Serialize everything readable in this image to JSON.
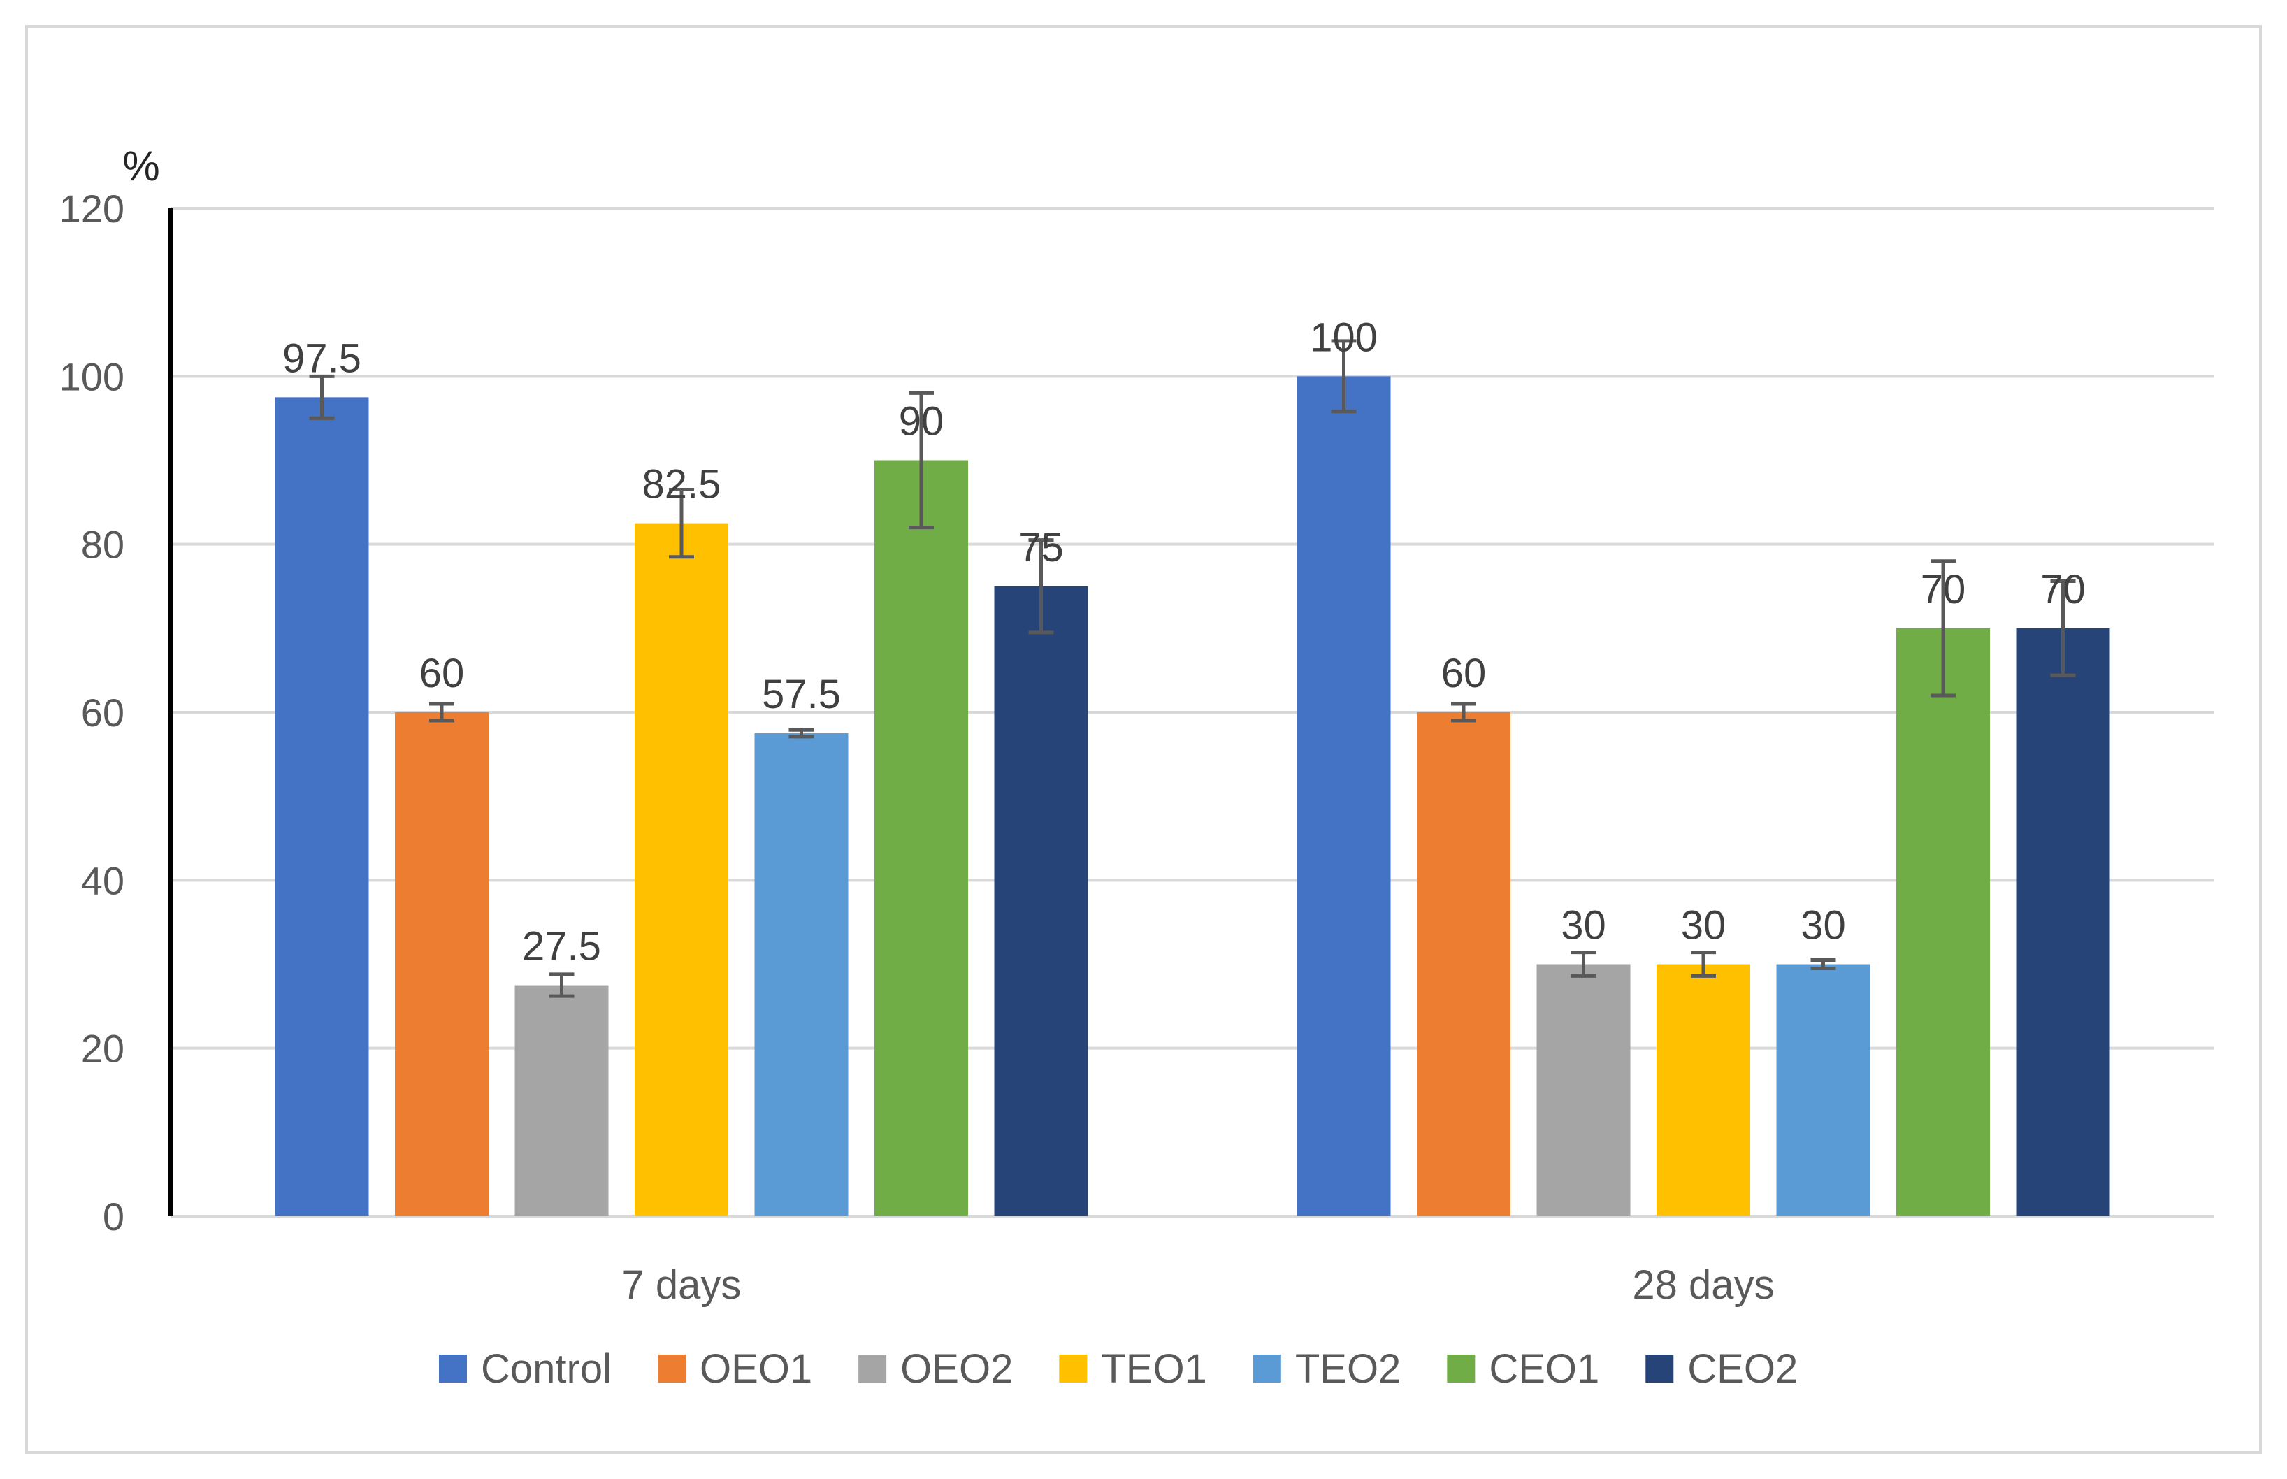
{
  "chart_data": {
    "type": "bar",
    "title": "",
    "xlabel": "",
    "ylabel": "%",
    "ylim": [
      0,
      120
    ],
    "yticks": [
      "0",
      "20",
      "40",
      "60",
      "80",
      "100",
      "120"
    ],
    "grid": true,
    "legend_position": "bottom",
    "categories": [
      "7 days",
      "28 days"
    ],
    "series": [
      {
        "name": "Control",
        "color": "#4472C4",
        "values": [
          97.5,
          100
        ],
        "errors": [
          2.5,
          4.2
        ],
        "labels": [
          "97.5",
          "100"
        ]
      },
      {
        "name": "OEO1",
        "color": "#ED7D31",
        "values": [
          60,
          60
        ],
        "errors": [
          1.0,
          1.0
        ],
        "labels": [
          "60",
          "60"
        ]
      },
      {
        "name": "OEO2",
        "color": "#A5A5A5",
        "values": [
          27.5,
          30
        ],
        "errors": [
          1.3,
          1.4
        ],
        "labels": [
          "27.5",
          "30"
        ]
      },
      {
        "name": "TEO1",
        "color": "#FFC000",
        "values": [
          82.5,
          30
        ],
        "errors": [
          4.0,
          1.4
        ],
        "labels": [
          "82.5",
          "30"
        ]
      },
      {
        "name": "TEO2",
        "color": "#5B9BD5",
        "values": [
          57.5,
          30
        ],
        "errors": [
          0.4,
          0.5
        ],
        "labels": [
          "57.5",
          "30"
        ]
      },
      {
        "name": "CEO1",
        "color": "#70AD47",
        "values": [
          90,
          70
        ],
        "errors": [
          8.0,
          8.0
        ],
        "labels": [
          "90",
          "70"
        ]
      },
      {
        "name": "CEO2",
        "color": "#264478",
        "values": [
          75,
          70
        ],
        "errors": [
          5.5,
          5.6
        ],
        "labels": [
          "75",
          "70"
        ]
      }
    ]
  }
}
